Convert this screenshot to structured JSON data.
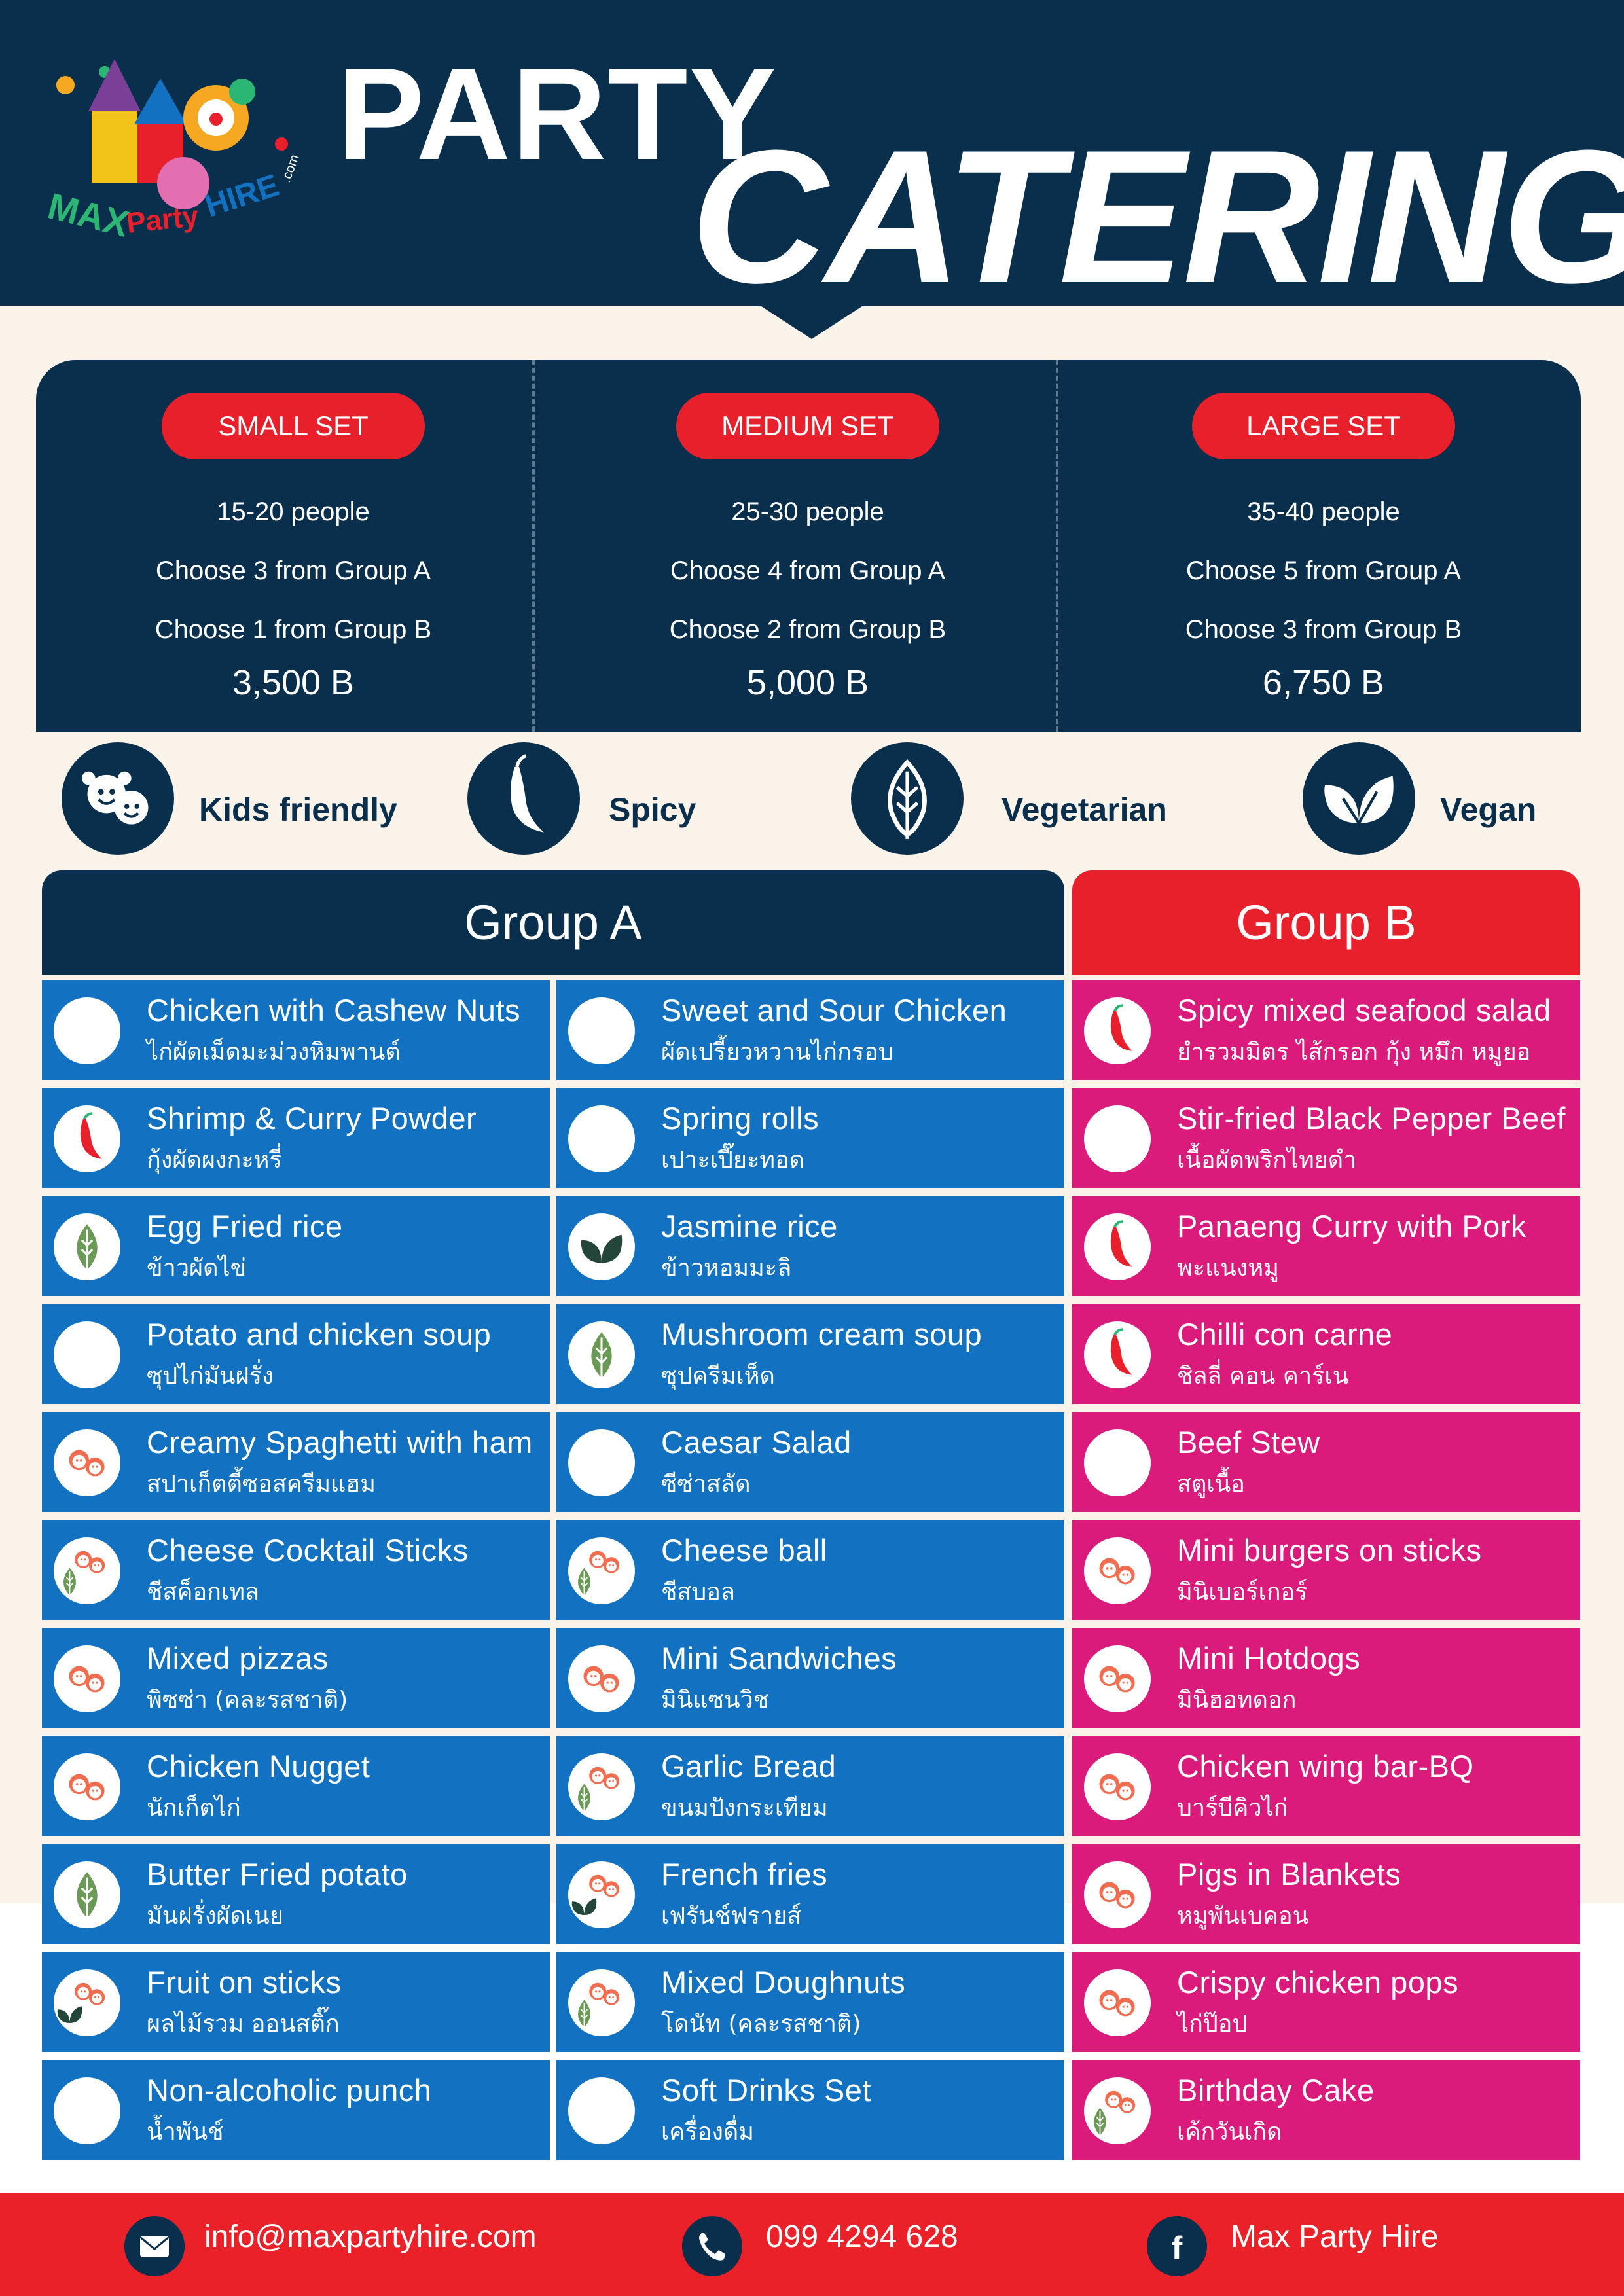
{
  "brand": {
    "logo_text": "MAX Party HIRE .com"
  },
  "header": {
    "title_top": "PARTY",
    "title_bottom": "CATERING"
  },
  "sets": [
    {
      "name": "SMALL SET",
      "people": "15-20 people",
      "group_a": "Choose 3 from Group A",
      "group_b": "Choose 1 from Group B",
      "price": "3,500 B"
    },
    {
      "name": "MEDIUM SET",
      "people": "25-30 people",
      "group_a": "Choose 4 from Group A",
      "group_b": "Choose 2 from Group B",
      "price": "5,000 B"
    },
    {
      "name": "LARGE SET",
      "people": "35-40 people",
      "group_a": "Choose 5 from Group A",
      "group_b": "Choose 3 from Group B",
      "price": "6,750 B"
    }
  ],
  "legend": [
    {
      "label": "Kids friendly",
      "icon": "kids-icon"
    },
    {
      "label": "Spicy",
      "icon": "chili-icon"
    },
    {
      "label": "Vegetarian",
      "icon": "leaf-icon"
    },
    {
      "label": "Vegan",
      "icon": "double-leaf-icon"
    }
  ],
  "group_a": {
    "title": "Group A",
    "col1": [
      {
        "en": "Chicken with Cashew Nuts",
        "th": "ไก่ผัดเม็ดมะม่วงหิมพานต์",
        "tags": []
      },
      {
        "en": "Shrimp & Curry Powder",
        "th": "กุ้งผัดผงกะหรี่",
        "tags": [
          "spicy"
        ]
      },
      {
        "en": "Egg Fried rice",
        "th": "ข้าวผัดไข่",
        "tags": [
          "vegetarian"
        ]
      },
      {
        "en": "Potato and chicken soup",
        "th": "ซุปไก่มันฝรั่ง",
        "tags": []
      },
      {
        "en": "Creamy Spaghetti with ham",
        "th": "สปาเก็ตตี้ซอสครีมแฮม",
        "tags": [
          "kids"
        ]
      },
      {
        "en": "Cheese Cocktail Sticks",
        "th": "ชีสค็อกเทล",
        "tags": [
          "kids",
          "vegetarian"
        ]
      },
      {
        "en": "Mixed pizzas",
        "th": "พิซซ่า (คละรสชาติ)",
        "tags": [
          "kids"
        ]
      },
      {
        "en": "Chicken Nugget",
        "th": "นักเก็ตไก่",
        "tags": [
          "kids"
        ]
      },
      {
        "en": "Butter Fried potato",
        "th": "มันฝรั่งผัดเนย",
        "tags": [
          "vegetarian"
        ]
      },
      {
        "en": "Fruit on sticks",
        "th": "ผลไม้รวม ออนสติ๊ก",
        "tags": [
          "kids",
          "vegan"
        ]
      },
      {
        "en": "Non-alcoholic punch",
        "th": "น้ำพันช์",
        "tags": []
      }
    ],
    "col2": [
      {
        "en": "Sweet and Sour Chicken",
        "th": "ผัดเปรี้ยวหวานไก่กรอบ",
        "tags": []
      },
      {
        "en": "Spring rolls",
        "th": "เปาะเปี๊ยะทอด",
        "tags": []
      },
      {
        "en": "Jasmine rice",
        "th": "ข้าวหอมมะลิ",
        "tags": [
          "vegan"
        ]
      },
      {
        "en": "Mushroom cream soup",
        "th": "ซุปครีมเห็ด",
        "tags": [
          "vegetarian"
        ]
      },
      {
        "en": "Caesar Salad",
        "th": "ซีซ่าสลัด",
        "tags": []
      },
      {
        "en": "Cheese ball",
        "th": "ชีสบอล",
        "tags": [
          "kids",
          "vegetarian"
        ]
      },
      {
        "en": "Mini Sandwiches",
        "th": "มินิแซนวิช",
        "tags": [
          "kids"
        ]
      },
      {
        "en": "Garlic Bread",
        "th": "ขนมปังกระเทียม",
        "tags": [
          "kids",
          "vegetarian"
        ]
      },
      {
        "en": "French fries",
        "th": "เฟรันช์ฟรายส์",
        "tags": [
          "kids",
          "vegan"
        ]
      },
      {
        "en": "Mixed Doughnuts",
        "th": "โดนัท (คละรสชาติ)",
        "tags": [
          "kids",
          "vegetarian"
        ]
      },
      {
        "en": "Soft Drinks Set",
        "th": "เครื่องดื่ม",
        "tags": []
      }
    ]
  },
  "group_b": {
    "title": "Group B",
    "items": [
      {
        "en": "Spicy mixed seafood salad",
        "th": "ยำรวมมิตร ไส้กรอก กุ้ง หมึก หมูยอ",
        "tags": [
          "spicy"
        ]
      },
      {
        "en": "Stir-fried Black Pepper Beef",
        "th": "เนื้อผัดพริกไทยดำ",
        "tags": []
      },
      {
        "en": "Panaeng Curry with Pork",
        "th": "พะแนงหมู",
        "tags": [
          "spicy"
        ]
      },
      {
        "en": "Chilli con carne",
        "th": "ชิลลี่ คอน คาร์เน",
        "tags": [
          "spicy"
        ]
      },
      {
        "en": "Beef Stew",
        "th": "สตูเนื้อ",
        "tags": []
      },
      {
        "en": "Mini burgers on sticks",
        "th": "มินิเบอร์เกอร์",
        "tags": [
          "kids"
        ]
      },
      {
        "en": "Mini Hotdogs",
        "th": "มินิฮอทดอก",
        "tags": [
          "kids"
        ]
      },
      {
        "en": "Chicken wing bar-BQ",
        "th": "บาร์บีคิวไก่",
        "tags": [
          "kids"
        ]
      },
      {
        "en": "Pigs in Blankets",
        "th": "หมูพันเบคอน",
        "tags": [
          "kids"
        ]
      },
      {
        "en": "Crispy chicken pops",
        "th": "ไก่ป๊อป",
        "tags": [
          "kids"
        ]
      },
      {
        "en": "Birthday Cake",
        "th": "เค้กวันเกิด",
        "tags": [
          "kids",
          "vegetarian"
        ]
      }
    ]
  },
  "footer": {
    "email": "info@maxpartyhire.com",
    "phone": "099 4294 628",
    "facebook": "Max Party Hire"
  },
  "colors": {
    "navy": "#0a2f4c",
    "red": "#e8202b",
    "blue": "#1272c1",
    "pink": "#da1b7b",
    "cream": "#faf3ea"
  }
}
